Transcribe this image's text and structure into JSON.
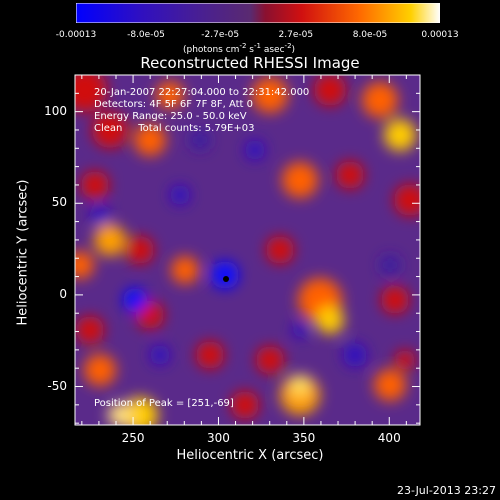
{
  "colorbar": {
    "tick_labels": [
      "-0.00013",
      "-8.0e-05",
      "-2.7e-05",
      "2.7e-05",
      "8.0e-05",
      "0.00013"
    ],
    "tick_values": [
      -0.00013,
      -8e-05,
      -2.7e-05,
      2.7e-05,
      8e-05,
      0.00013
    ],
    "unit_prefix": "(photons cm",
    "unit_exp1": "-2",
    "unit_mid": " s",
    "unit_exp2": "-1",
    "unit_mid2": " asec",
    "unit_exp3": "-2",
    "unit_suffix": ")",
    "colors": [
      "#0000ff",
      "#3a1aa0",
      "#5a2a80",
      "#6a3a6a",
      "#c01010",
      "#ff6000",
      "#ffcc00",
      "#ffffff"
    ]
  },
  "title": "Reconstructed RHESSI Image",
  "info": {
    "time": "20-Jan-2007 22:27:04.000 to 22:31:42.000",
    "detectors": "Detectors: 4F 5F 6F 7F 8F, Att 0",
    "energy": "Energy Range: 25.0 - 50.0 keV",
    "clean": "Clean     Total counts: 5.79E+03",
    "peak": "Position of Peak = [251,-69]"
  },
  "axes": {
    "xlabel": "Heliocentric X (arcsec)",
    "ylabel": "Heliocentric Y (arcsec)",
    "xticks": [
      "250",
      "300",
      "350",
      "400"
    ],
    "xtick_values": [
      250,
      300,
      350,
      400
    ],
    "xlim": [
      216,
      418
    ],
    "yticks": [
      "100",
      "50",
      "0",
      "-50"
    ],
    "ytick_values": [
      100,
      50,
      0,
      -50
    ],
    "ylim": [
      -71,
      120
    ]
  },
  "timestamp": "23-Jul-2013 23:27"
}
